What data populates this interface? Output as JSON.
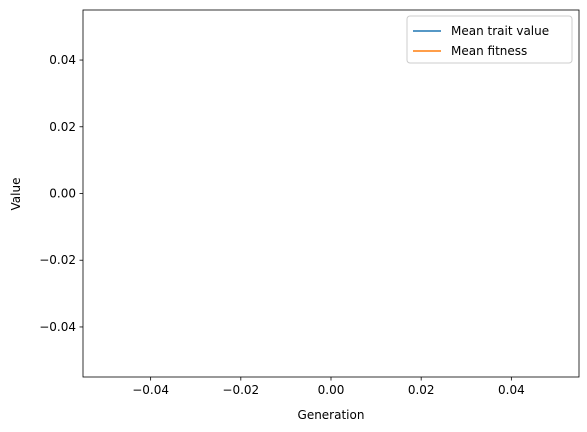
{
  "chart_data": {
    "type": "line",
    "title": "",
    "xlabel": "Generation",
    "ylabel": "Value",
    "xlim": [
      -0.055,
      0.055
    ],
    "ylim": [
      -0.055,
      0.055
    ],
    "x_ticks": [
      -0.04,
      -0.02,
      0.0,
      0.02,
      0.04
    ],
    "x_tick_labels": [
      "−0.04",
      "−0.02",
      "0.00",
      "0.02",
      "0.04"
    ],
    "y_ticks": [
      0.04,
      0.02,
      0.0,
      -0.02,
      -0.04
    ],
    "y_tick_labels": [
      "0.04",
      "0.02",
      "0.00",
      "−0.02",
      "−0.04"
    ],
    "grid": false,
    "legend_position": "top-right",
    "series": [
      {
        "name": "Mean trait value",
        "color": "#1f77b4",
        "x": [],
        "y": []
      },
      {
        "name": "Mean fitness",
        "color": "#ff7f0e",
        "x": [],
        "y": []
      }
    ]
  }
}
